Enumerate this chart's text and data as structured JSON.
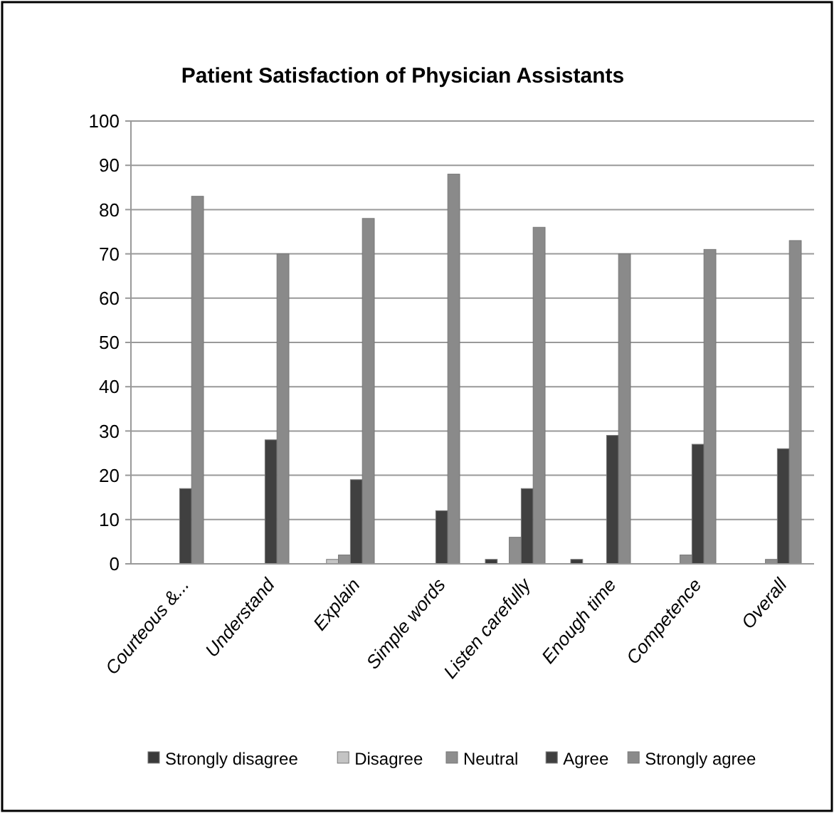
{
  "chart_data": {
    "type": "bar",
    "title": "Patient Satisfaction of Physician Assistants",
    "categories": [
      "Courteous &...",
      "Understand",
      "Explain",
      "Simple words",
      "Listen carefully",
      "Enough time",
      "Competence",
      "Overall"
    ],
    "series": [
      {
        "name": "Strongly disagree",
        "color": "#3a3a3a",
        "values": [
          0,
          0,
          0,
          0,
          1,
          1,
          0,
          0
        ]
      },
      {
        "name": "Disagree",
        "color": "#c4c4c4",
        "values": [
          0,
          0,
          1,
          0,
          0,
          0,
          0,
          0
        ]
      },
      {
        "name": "Neutral",
        "color": "#8e8e8e",
        "values": [
          0,
          0,
          2,
          0,
          6,
          0,
          2,
          1
        ]
      },
      {
        "name": "Agree",
        "color": "#404040",
        "values": [
          17,
          28,
          19,
          12,
          17,
          29,
          27,
          26
        ]
      },
      {
        "name": "Strongly agree",
        "color": "#8a8a8a",
        "values": [
          83,
          70,
          78,
          88,
          76,
          70,
          71,
          73
        ]
      }
    ],
    "ylim": [
      0,
      100
    ],
    "yticks": [
      0,
      10,
      20,
      30,
      40,
      50,
      60,
      70,
      80,
      90,
      100
    ],
    "grid": "y",
    "legend": "bottom"
  }
}
